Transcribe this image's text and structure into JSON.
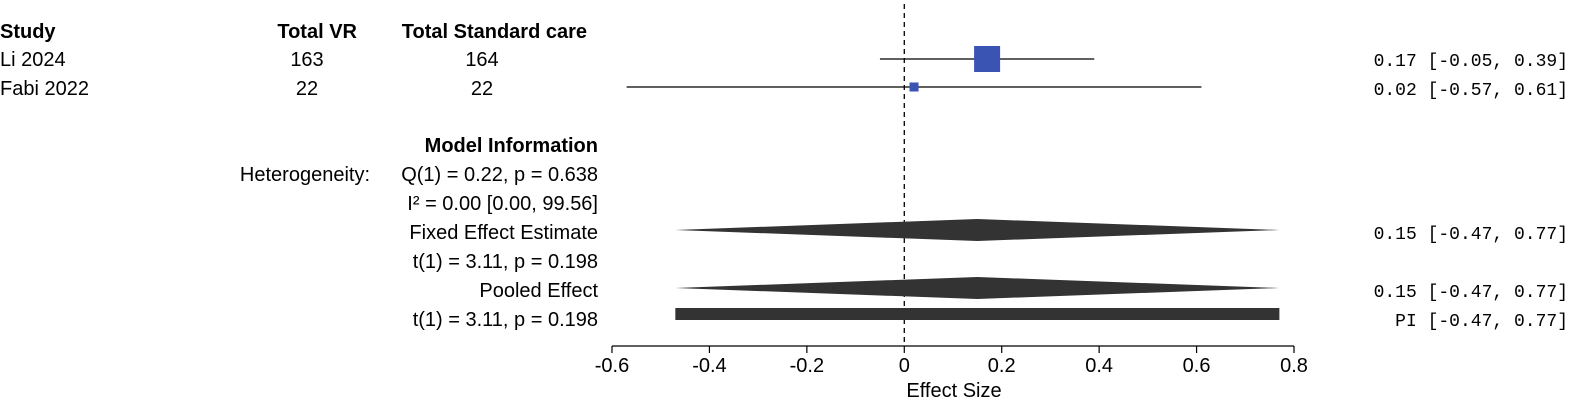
{
  "columns": {
    "study": "Study",
    "total_vr": "Total VR",
    "total_sc": "Total Standard care"
  },
  "model_info": {
    "heading": "Model Information",
    "heterogeneity_label": "Heterogeneity:",
    "q_stat": "Q(1) = 0.22, p = 0.638",
    "i2_stat": "I² = 0.00 [0.00, 99.56]",
    "fixed_label": "Fixed Effect Estimate",
    "fixed_test": "t(1) = 3.11, p = 0.198",
    "pooled_label": "Pooled Effect",
    "pooled_test": "t(1) = 3.11, p = 0.198"
  },
  "chart_data": {
    "type": "forest",
    "xlabel": "Effect Size",
    "xlim": [
      -0.6,
      0.8
    ],
    "xticks": [
      -0.6,
      -0.4,
      -0.2,
      0,
      0.2,
      0.4,
      0.6,
      0.8
    ],
    "tick_labels": [
      "-0.6",
      "-0.4",
      "-0.2",
      "0",
      "0.2",
      "0.4",
      "0.6",
      "0.8"
    ],
    "reference_line": 0,
    "colors": {
      "study": "#3a54b4",
      "summary": "#333333"
    },
    "studies": [
      {
        "name": "Li 2024",
        "n_vr": "163",
        "n_sc": "164",
        "est": 0.17,
        "lo": -0.05,
        "hi": 0.39,
        "label": "0.17 [-0.05, 0.39]",
        "weight": 1.0
      },
      {
        "name": "Fabi 2022",
        "n_vr": "22",
        "n_sc": "22",
        "est": 0.02,
        "lo": -0.57,
        "hi": 0.61,
        "label": "0.02 [-0.57, 0.61]",
        "weight": 0.12
      }
    ],
    "fixed": {
      "est": 0.15,
      "lo": -0.47,
      "hi": 0.77,
      "label": "0.15 [-0.47, 0.77]"
    },
    "pooled": {
      "est": 0.15,
      "lo": -0.47,
      "hi": 0.77,
      "label": "0.15 [-0.47, 0.77]"
    },
    "prediction_interval": {
      "lo": -0.47,
      "hi": 0.77,
      "label": "PI [-0.47, 0.77]"
    }
  }
}
